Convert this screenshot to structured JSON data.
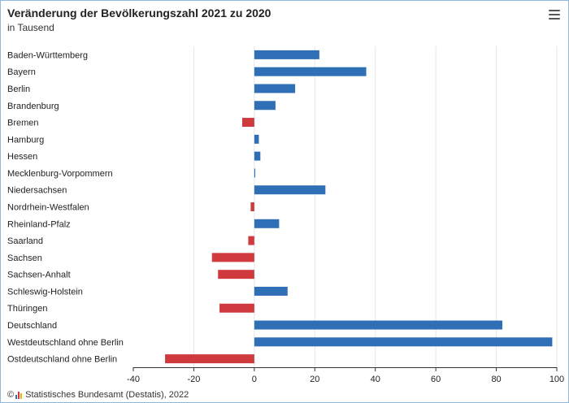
{
  "header": {
    "title": "Veränderung der Bevölkerungszahl 2021 zu 2020",
    "subtitle": "in Tausend",
    "menu_icon": "hamburger-menu-icon"
  },
  "footer": {
    "copyright": "©",
    "source": "Statistisches Bundesamt (Destatis), 2022",
    "logo_icon": "destatis-logo-icon"
  },
  "colors": {
    "positive": "#2e6fb5",
    "negative": "#d0393e",
    "grid": "#e6e6e6",
    "axis": "#333333"
  },
  "chart_data": {
    "type": "bar",
    "orientation": "horizontal",
    "title": "Veränderung der Bevölkerungszahl 2021 zu 2020",
    "subtitle": "in Tausend",
    "categories": [
      "Baden-Württemberg",
      "Bayern",
      "Berlin",
      "Brandenburg",
      "Bremen",
      "Hamburg",
      "Hessen",
      "Mecklenburg-Vorpommern",
      "Niedersachsen",
      "Nordrhein-Westfalen",
      "Rheinland-Pfalz",
      "Saarland",
      "Sachsen",
      "Sachsen-Anhalt",
      "Schleswig-Holstein",
      "Thüringen",
      "Deutschland",
      "Westdeutschland ohne Berlin",
      "Ostdeutschland ohne Berlin"
    ],
    "values": [
      21.5,
      37,
      13.5,
      7,
      -4,
      1.5,
      2,
      0.3,
      23.5,
      -1.2,
      8.2,
      -2,
      -14,
      -12,
      11,
      -11.5,
      82,
      98.5,
      -29.5
    ],
    "xlim": [
      -40,
      100
    ],
    "ticks": [
      -40,
      -20,
      0,
      20,
      40,
      60,
      80,
      100
    ],
    "grid": true
  }
}
